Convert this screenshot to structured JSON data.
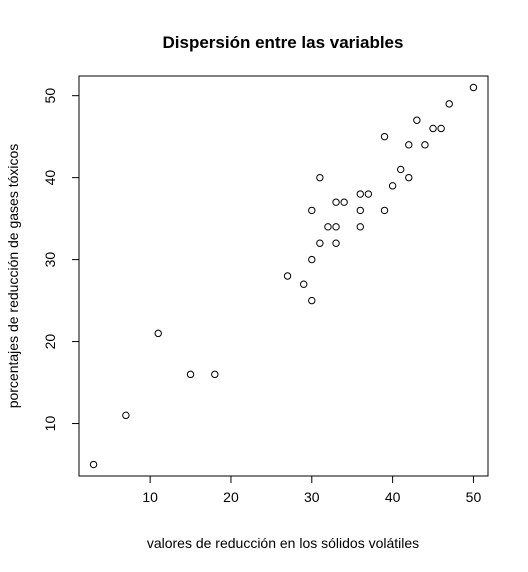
{
  "chart_data": {
    "type": "scatter",
    "title": "Dispersión entre las variables",
    "xlabel": "valores de reducción en los sólidos volátiles",
    "ylabel": "porcentajes de reducción de gases tóxicos",
    "xlim": [
      1.2,
      51.8
    ],
    "ylim": [
      3.6,
      52.4
    ],
    "xticks": [
      10,
      20,
      30,
      40,
      50
    ],
    "yticks": [
      10,
      20,
      30,
      40,
      50
    ],
    "xtick_labels": [
      "10",
      "20",
      "30",
      "40",
      "50"
    ],
    "ytick_labels": [
      "10",
      "20",
      "30",
      "40",
      "50"
    ],
    "grid": false,
    "marker": "open-circle",
    "colors": {
      "points": "#000000",
      "axes": "#000000",
      "background": "#ffffff"
    },
    "points": [
      {
        "x": 3,
        "y": 5
      },
      {
        "x": 7,
        "y": 11
      },
      {
        "x": 11,
        "y": 21
      },
      {
        "x": 15,
        "y": 16
      },
      {
        "x": 18,
        "y": 16
      },
      {
        "x": 27,
        "y": 28
      },
      {
        "x": 29,
        "y": 27
      },
      {
        "x": 30,
        "y": 25
      },
      {
        "x": 30,
        "y": 30
      },
      {
        "x": 30,
        "y": 36
      },
      {
        "x": 31,
        "y": 32
      },
      {
        "x": 31,
        "y": 40
      },
      {
        "x": 32,
        "y": 34
      },
      {
        "x": 33,
        "y": 32
      },
      {
        "x": 33,
        "y": 34
      },
      {
        "x": 33,
        "y": 37
      },
      {
        "x": 34,
        "y": 37
      },
      {
        "x": 36,
        "y": 34
      },
      {
        "x": 36,
        "y": 36
      },
      {
        "x": 36,
        "y": 38
      },
      {
        "x": 37,
        "y": 38
      },
      {
        "x": 39,
        "y": 36
      },
      {
        "x": 39,
        "y": 45
      },
      {
        "x": 40,
        "y": 39
      },
      {
        "x": 41,
        "y": 41
      },
      {
        "x": 42,
        "y": 40
      },
      {
        "x": 42,
        "y": 44
      },
      {
        "x": 43,
        "y": 47
      },
      {
        "x": 44,
        "y": 44
      },
      {
        "x": 45,
        "y": 46
      },
      {
        "x": 46,
        "y": 46
      },
      {
        "x": 47,
        "y": 49
      },
      {
        "x": 50,
        "y": 51
      }
    ]
  }
}
